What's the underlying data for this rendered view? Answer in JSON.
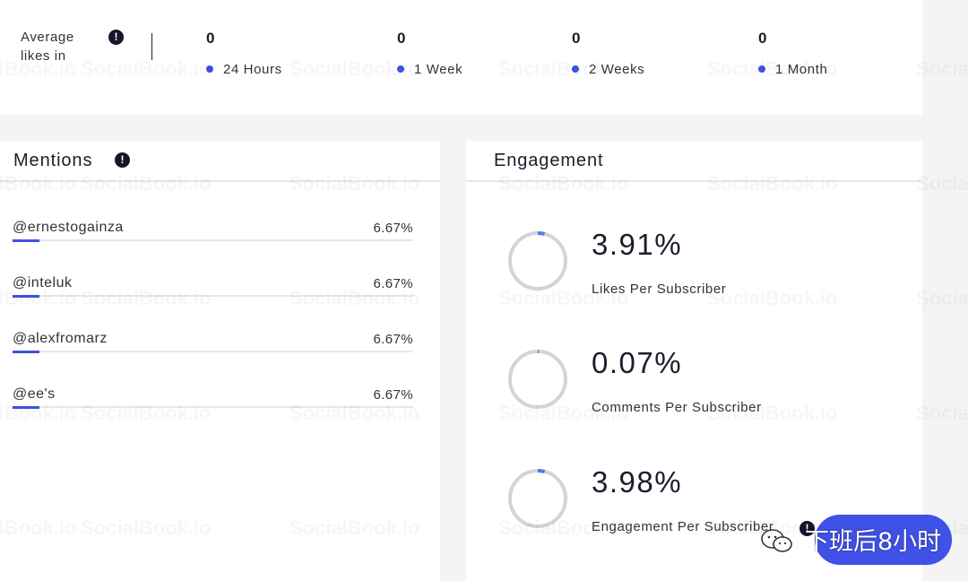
{
  "watermark": "SocialBook.io",
  "average_likes": {
    "label": "Average likes in",
    "info_icon": "!",
    "stats": [
      {
        "value": "0",
        "label": "24 Hours"
      },
      {
        "value": "0",
        "label": "1 Week"
      },
      {
        "value": "0",
        "label": "2 Weeks"
      },
      {
        "value": "0",
        "label": "1 Month"
      }
    ]
  },
  "mentions": {
    "title": "Mentions",
    "info_icon": "!",
    "items": [
      {
        "handle": "@ernestogainza",
        "percent": "6.67%"
      },
      {
        "handle": "@inteluk",
        "percent": "6.67%"
      },
      {
        "handle": "@alexfromarz",
        "percent": "6.67%"
      },
      {
        "handle": "@ee's",
        "percent": "6.67%"
      }
    ]
  },
  "engagement": {
    "title": "Engagement",
    "items": [
      {
        "value": "3.91%",
        "label": "Likes Per Subscriber",
        "fraction": 0.0391
      },
      {
        "value": "0.07%",
        "label": "Comments Per Subscriber",
        "fraction": 0.0007
      },
      {
        "value": "3.98%",
        "label": "Engagement Per Subscriber",
        "fraction": 0.0398
      }
    ]
  },
  "overlay": {
    "chat_label": "下班后8小时",
    "info_icon": "!"
  },
  "colors": {
    "accent": "#3f51e6",
    "ring_track": "#d4d4d8",
    "ring_progress": "#4a7fe8",
    "card_bg": "#ffffff",
    "page_bg": "#f4f4f6"
  }
}
